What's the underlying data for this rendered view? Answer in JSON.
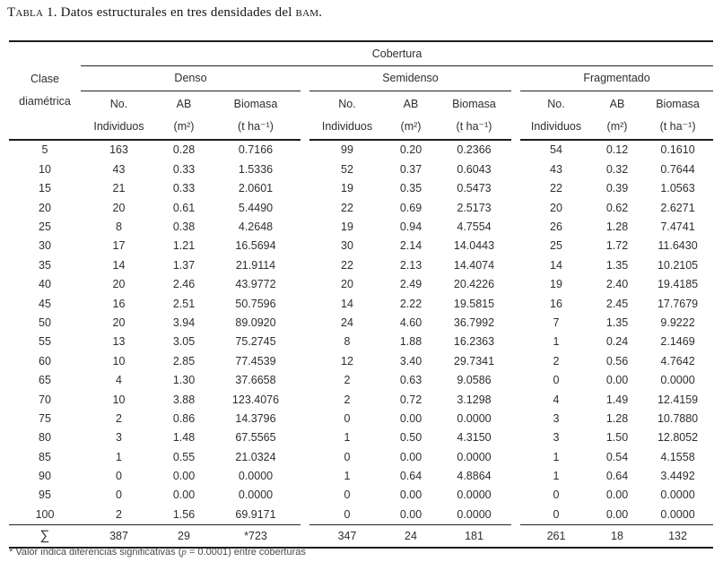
{
  "title": {
    "label": "Tabla 1.",
    "text": " Datos estructurales en tres densidades del ",
    "acronym": "bam",
    "suffix": "."
  },
  "table": {
    "span_header": "Cobertura",
    "row_header": {
      "line1": "Clase",
      "line2": "diamétrica"
    },
    "groups": [
      {
        "name": "Denso"
      },
      {
        "name": "Semidenso"
      },
      {
        "name": "Fragmentado"
      }
    ],
    "col_headers": {
      "no_line1": "No.",
      "no_line2": "Individuos",
      "ab_line1": "AB",
      "ab_line2": "(m²)",
      "bio_line1": "Biomasa",
      "bio_line2": "(t ha⁻¹)"
    },
    "rows": [
      {
        "clase": "5",
        "denso": [
          "163",
          "0.28",
          "0.7166"
        ],
        "semidenso": [
          "99",
          "0.20",
          "0.2366"
        ],
        "fragmentado": [
          "54",
          "0.12",
          "0.1610"
        ]
      },
      {
        "clase": "10",
        "denso": [
          "43",
          "0.33",
          "1.5336"
        ],
        "semidenso": [
          "52",
          "0.37",
          "0.6043"
        ],
        "fragmentado": [
          "43",
          "0.32",
          "0.7644"
        ]
      },
      {
        "clase": "15",
        "denso": [
          "21",
          "0.33",
          "2.0601"
        ],
        "semidenso": [
          "19",
          "0.35",
          "0.5473"
        ],
        "fragmentado": [
          "22",
          "0.39",
          "1.0563"
        ]
      },
      {
        "clase": "20",
        "denso": [
          "20",
          "0.61",
          "5.4490"
        ],
        "semidenso": [
          "22",
          "0.69",
          "2.5173"
        ],
        "fragmentado": [
          "20",
          "0.62",
          "2.6271"
        ]
      },
      {
        "clase": "25",
        "denso": [
          "8",
          "0.38",
          "4.2648"
        ],
        "semidenso": [
          "19",
          "0.94",
          "4.7554"
        ],
        "fragmentado": [
          "26",
          "1.28",
          "7.4741"
        ]
      },
      {
        "clase": "30",
        "denso": [
          "17",
          "1.21",
          "16.5694"
        ],
        "semidenso": [
          "30",
          "2.14",
          "14.0443"
        ],
        "fragmentado": [
          "25",
          "1.72",
          "11.6430"
        ]
      },
      {
        "clase": "35",
        "denso": [
          "14",
          "1.37",
          "21.9114"
        ],
        "semidenso": [
          "22",
          "2.13",
          "14.4074"
        ],
        "fragmentado": [
          "14",
          "1.35",
          "10.2105"
        ]
      },
      {
        "clase": "40",
        "denso": [
          "20",
          "2.46",
          "43.9772"
        ],
        "semidenso": [
          "20",
          "2.49",
          "20.4226"
        ],
        "fragmentado": [
          "19",
          "2.40",
          "19.4185"
        ]
      },
      {
        "clase": "45",
        "denso": [
          "16",
          "2.51",
          "50.7596"
        ],
        "semidenso": [
          "14",
          "2.22",
          "19.5815"
        ],
        "fragmentado": [
          "16",
          "2.45",
          "17.7679"
        ]
      },
      {
        "clase": "50",
        "denso": [
          "20",
          "3.94",
          "89.0920"
        ],
        "semidenso": [
          "24",
          "4.60",
          "36.7992"
        ],
        "fragmentado": [
          "7",
          "1.35",
          "9.9222"
        ]
      },
      {
        "clase": "55",
        "denso": [
          "13",
          "3.05",
          "75.2745"
        ],
        "semidenso": [
          "8",
          "1.88",
          "16.2363"
        ],
        "fragmentado": [
          "1",
          "0.24",
          "2.1469"
        ]
      },
      {
        "clase": "60",
        "denso": [
          "10",
          "2.85",
          "77.4539"
        ],
        "semidenso": [
          "12",
          "3.40",
          "29.7341"
        ],
        "fragmentado": [
          "2",
          "0.56",
          "4.7642"
        ]
      },
      {
        "clase": "65",
        "denso": [
          "4",
          "1.30",
          "37.6658"
        ],
        "semidenso": [
          "2",
          "0.63",
          "9.0586"
        ],
        "fragmentado": [
          "0",
          "0.00",
          "0.0000"
        ]
      },
      {
        "clase": "70",
        "denso": [
          "10",
          "3.88",
          "123.4076"
        ],
        "semidenso": [
          "2",
          "0.72",
          "3.1298"
        ],
        "fragmentado": [
          "4",
          "1.49",
          "12.4159"
        ]
      },
      {
        "clase": "75",
        "denso": [
          "2",
          "0.86",
          "14.3796"
        ],
        "semidenso": [
          "0",
          "0.00",
          "0.0000"
        ],
        "fragmentado": [
          "3",
          "1.28",
          "10.7880"
        ]
      },
      {
        "clase": "80",
        "denso": [
          "3",
          "1.48",
          "67.5565"
        ],
        "semidenso": [
          "1",
          "0.50",
          "4.3150"
        ],
        "fragmentado": [
          "3",
          "1.50",
          "12.8052"
        ]
      },
      {
        "clase": "85",
        "denso": [
          "1",
          "0.55",
          "21.0324"
        ],
        "semidenso": [
          "0",
          "0.00",
          "0.0000"
        ],
        "fragmentado": [
          "1",
          "0.54",
          "4.1558"
        ]
      },
      {
        "clase": "90",
        "denso": [
          "0",
          "0.00",
          "0.0000"
        ],
        "semidenso": [
          "1",
          "0.64",
          "4.8864"
        ],
        "fragmentado": [
          "1",
          "0.64",
          "3.4492"
        ]
      },
      {
        "clase": "95",
        "denso": [
          "0",
          "0.00",
          "0.0000"
        ],
        "semidenso": [
          "0",
          "0.00",
          "0.0000"
        ],
        "fragmentado": [
          "0",
          "0.00",
          "0.0000"
        ]
      },
      {
        "clase": "100",
        "denso": [
          "2",
          "1.56",
          "69.9171"
        ],
        "semidenso": [
          "0",
          "0.00",
          "0.0000"
        ],
        "fragmentado": [
          "0",
          "0.00",
          "0.0000"
        ]
      }
    ],
    "totals": {
      "clase": "∑",
      "denso": [
        "387",
        "29",
        "*723"
      ],
      "semidenso": [
        "347",
        "24",
        "181"
      ],
      "fragmentado": [
        "261",
        "18",
        "132"
      ]
    }
  },
  "footnote": {
    "prefix": "* Valor indica diferencias significativas (",
    "p": "p",
    "suffix": " = 0.0001) entre coberturas"
  }
}
